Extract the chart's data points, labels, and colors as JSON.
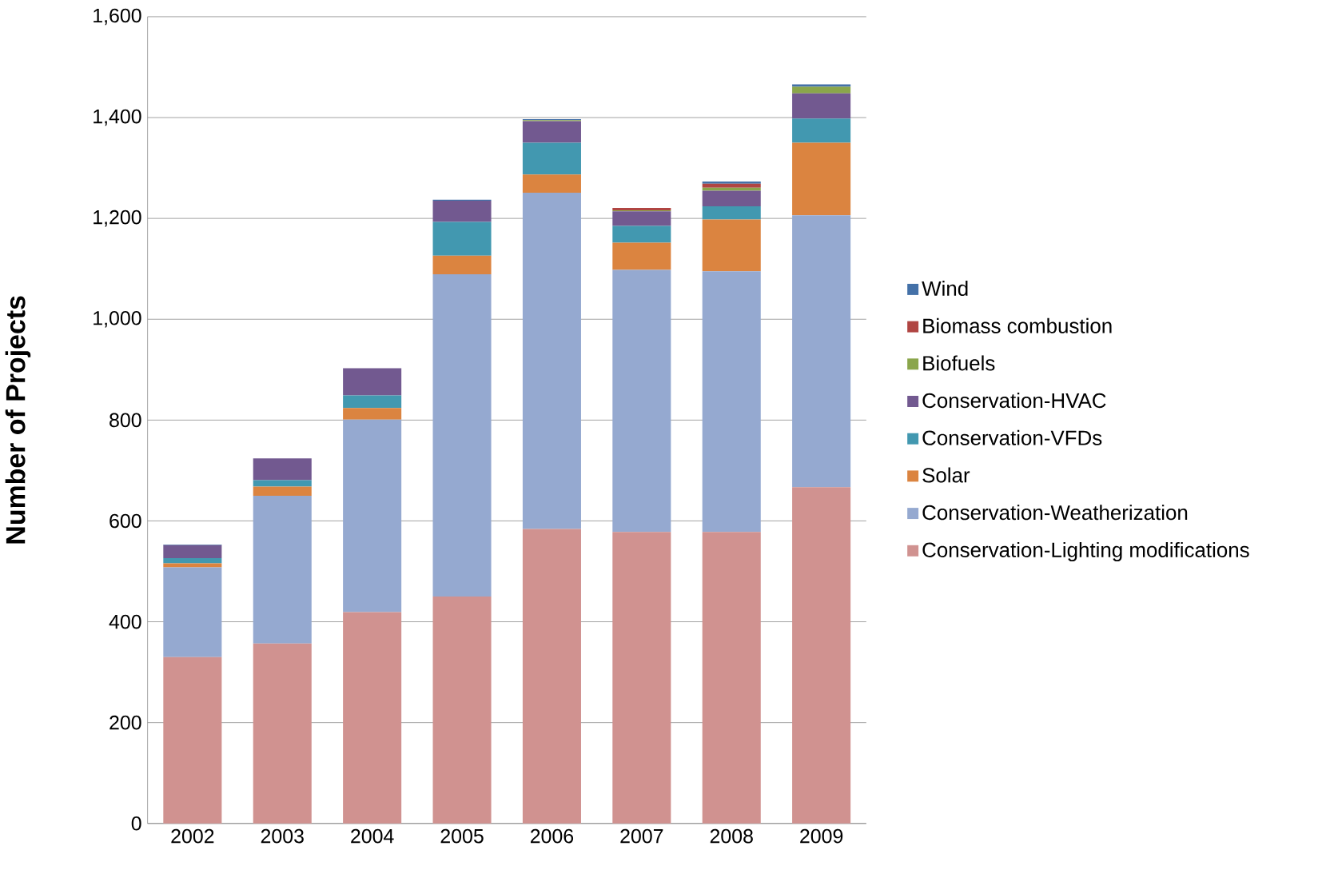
{
  "chart_data": {
    "type": "bar",
    "stacked": true,
    "ylabel": "Number of Projects",
    "categories": [
      "2002",
      "2003",
      "2004",
      "2005",
      "2006",
      "2007",
      "2008",
      "2009"
    ],
    "series": [
      {
        "name": "Conservation-Lighting modifications",
        "color": "#d09290",
        "values": [
          330,
          357,
          419,
          450,
          584,
          578,
          578,
          667
        ]
      },
      {
        "name": "Conservation-Weatherization",
        "color": "#95a9d0",
        "values": [
          178,
          293,
          382,
          639,
          667,
          520,
          517,
          539
        ]
      },
      {
        "name": "Solar",
        "color": "#db8440",
        "values": [
          8,
          18,
          23,
          37,
          36,
          54,
          103,
          144
        ]
      },
      {
        "name": "Conservation-VFDs",
        "color": "#4298b0",
        "values": [
          10,
          13,
          25,
          67,
          63,
          33,
          26,
          48
        ]
      },
      {
        "name": "Conservation-HVAC",
        "color": "#725990",
        "values": [
          26,
          43,
          54,
          42,
          43,
          29,
          31,
          50
        ]
      },
      {
        "name": "Biofuels",
        "color": "#8aa64b",
        "values": [
          0,
          0,
          0,
          0,
          2,
          2,
          6,
          13
        ]
      },
      {
        "name": "Biomass combustion",
        "color": "#b04542",
        "values": [
          0,
          0,
          0,
          0,
          0,
          5,
          8,
          0
        ]
      },
      {
        "name": "Wind",
        "color": "#4471a8",
        "values": [
          1,
          null,
          null,
          2,
          2,
          0,
          4,
          5
        ]
      }
    ],
    "ylim": [
      0,
      1600
    ],
    "yticks": [
      {
        "value": 0,
        "label": "0"
      },
      {
        "value": 200,
        "label": "200"
      },
      {
        "value": 400,
        "label": "400"
      },
      {
        "value": 600,
        "label": "600"
      },
      {
        "value": 800,
        "label": "800"
      },
      {
        "value": 1000,
        "label": "1,000"
      },
      {
        "value": 1200,
        "label": "1,200"
      },
      {
        "value": 1400,
        "label": "1,400"
      },
      {
        "value": 1600,
        "label": "1,600"
      }
    ],
    "grid": "y",
    "legend": "right"
  }
}
